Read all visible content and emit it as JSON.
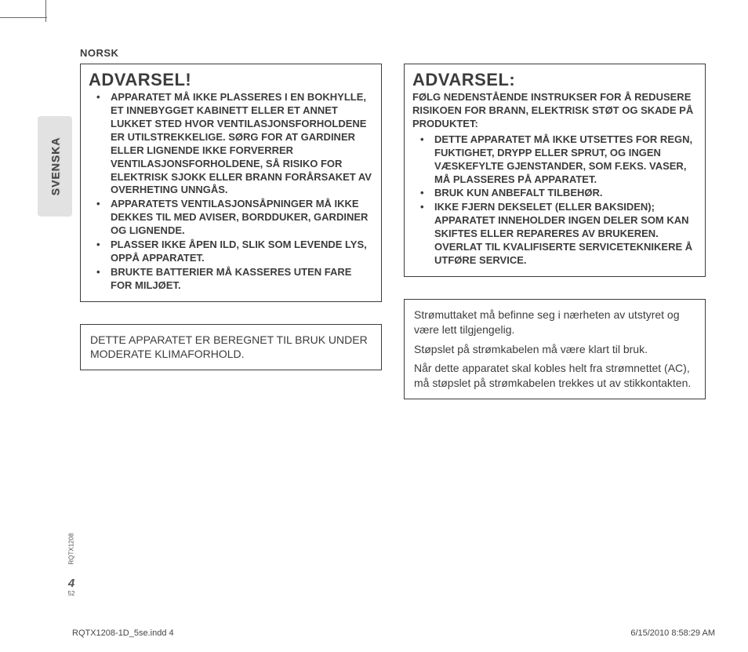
{
  "language_header": "NORSK",
  "side_tab": "SVENSKA",
  "left": {
    "box1": {
      "heading": "ADVARSEL!",
      "bullets": [
        "APPARATET MÅ IKKE PLASSERES I EN BOKHYLLE, ET INNEBYGGET KABINETT ELLER ET ANNET LUKKET STED HVOR VENTILASJONSFORHOLDENE ER UTILSTREKKELIGE. SØRG FOR AT GARDINER ELLER LIGNENDE IKKE FORVERRER VENTILASJONSFORHOLDENE, SÅ RISIKO FOR ELEKTRISK SJOKK ELLER BRANN FORÅRSAKET AV OVERHETING UNNGÅS.",
        "APPARATETS VENTILASJONSÅPNINGER MÅ IKKE DEKKES TIL MED AVISER, BORDDUKER, GARDINER OG LIGNENDE.",
        "PLASSER IKKE ÅPEN ILD, SLIK SOM LEVENDE LYS, OPPÅ APPARATET.",
        "BRUKTE BATTERIER MÅ KASSERES UTEN FARE FOR MILJØET."
      ]
    },
    "box2": {
      "text": "DETTE APPARATET ER BEREGNET TIL BRUK UNDER MODERATE KLIMAFORHOLD."
    }
  },
  "right": {
    "box1": {
      "heading": "ADVARSEL:",
      "intro": "FØLG NEDENSTÅENDE INSTRUKSER FOR Å REDUSERE RISIKOEN FOR BRANN, ELEKTRISK STØT OG SKADE PÅ PRODUKTET:",
      "bullets": [
        "DETTE APPARATET MÅ IKKE UTSETTES FOR REGN, FUKTIGHET, DRYPP ELLER SPRUT, OG INGEN VÆSKEFYLTE GJENSTANDER, SOM F.EKS. VASER, MÅ PLASSERES PÅ APPARATET.",
        "BRUK KUN ANBEFALT TILBEHØR.",
        "IKKE FJERN DEKSELET (ELLER BAKSIDEN); APPARATET INNEHOLDER INGEN DELER SOM KAN SKIFTES ELLER REPARERES AV BRUKEREN. OVERLAT TIL KVALIFISERTE SERVICETEKNIKERE Å UTFØRE SERVICE."
      ]
    },
    "box2": {
      "paras": [
        "Strømuttaket må befinne seg i nærheten av utstyret og være lett tilgjengelig.",
        "Støpslet på strømkabelen må være klart til bruk.",
        "Når dette apparatet skal kobles helt fra strømnettet (AC), må støpslet på strømkabelen trekkes ut av stikkontakten."
      ]
    }
  },
  "gutter": {
    "doc_code": "RQTX1208",
    "page_big": "4",
    "page_small": "52"
  },
  "footer": {
    "file": "RQTX1208-1D_5se.indd   4",
    "stamp": "6/15/2010   8:58:29 AM"
  },
  "colors": {
    "text": "#3c3c3c",
    "tab_bg": "#e2e2e2",
    "bg": "#ffffff"
  }
}
